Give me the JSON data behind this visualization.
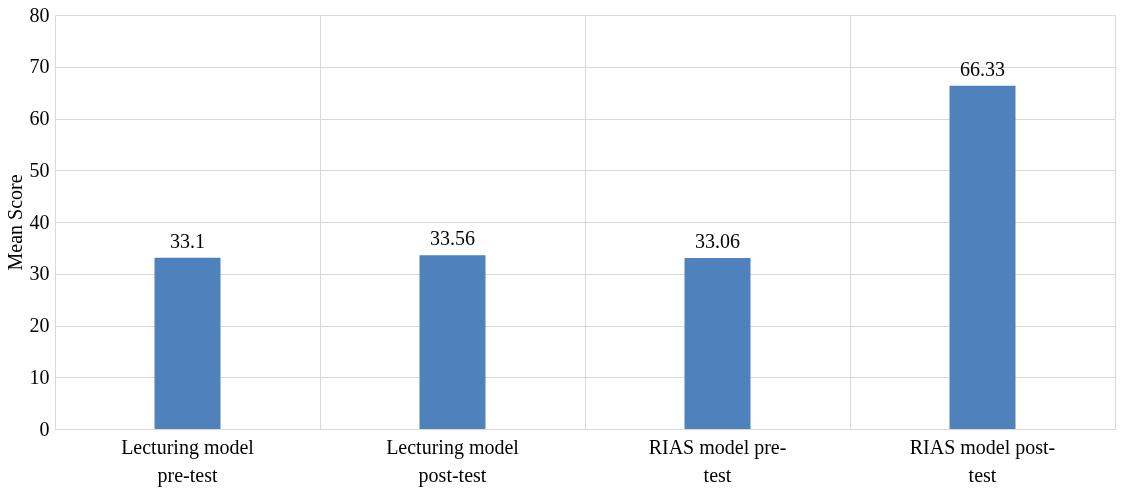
{
  "chart_data": {
    "type": "bar",
    "ylabel": "Mean Score",
    "categories": [
      "Lecturing model pre-test",
      "Lecturing model post-test",
      "RIAS model pre-test",
      "RIAS model post-test"
    ],
    "values": [
      33.1,
      33.56,
      33.06,
      66.33
    ],
    "color": "#4f81bd",
    "ylim": [
      0,
      80
    ],
    "yticks": [
      0,
      10,
      20,
      30,
      40,
      50,
      60,
      70,
      80
    ],
    "grid": true,
    "data_labels": true
  }
}
